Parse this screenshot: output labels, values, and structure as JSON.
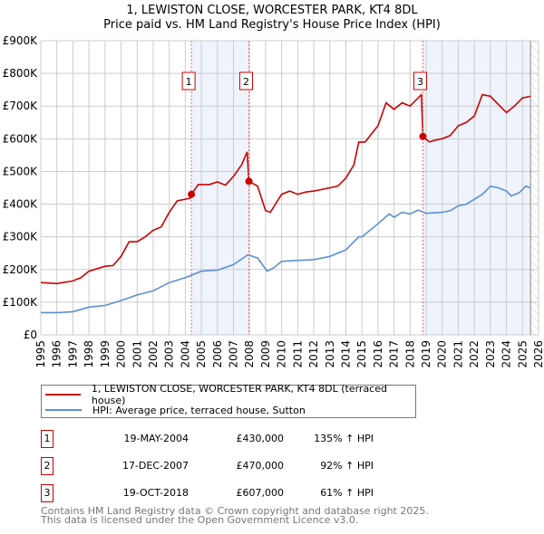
{
  "chart_data": {
    "type": "line",
    "title": "1, LEWISTON CLOSE, WORCESTER PARK, KT4 8DL",
    "subtitle": "Price paid vs. HM Land Registry's House Price Index (HPI)",
    "xlim": [
      1995,
      2026
    ],
    "ylim": [
      0,
      900000
    ],
    "grid": true,
    "x_ticks": [
      "1995",
      "1996",
      "1997",
      "1998",
      "1999",
      "2000",
      "2001",
      "2002",
      "2003",
      "2004",
      "2005",
      "2006",
      "2007",
      "2008",
      "2009",
      "2010",
      "2011",
      "2012",
      "2013",
      "2014",
      "2015",
      "2016",
      "2017",
      "2018",
      "2019",
      "2020",
      "2021",
      "2022",
      "2023",
      "2024",
      "2025",
      "2026"
    ],
    "y_ticks": [
      {
        "v": 0,
        "label": "£0"
      },
      {
        "v": 100000,
        "label": "£100K"
      },
      {
        "v": 200000,
        "label": "£200K"
      },
      {
        "v": 300000,
        "label": "£300K"
      },
      {
        "v": 400000,
        "label": "£400K"
      },
      {
        "v": 500000,
        "label": "£500K"
      },
      {
        "v": 600000,
        "label": "£600K"
      },
      {
        "v": 700000,
        "label": "£700K"
      },
      {
        "v": 800000,
        "label": "£800K"
      },
      {
        "v": 900000,
        "label": "£900K"
      }
    ],
    "forecast_start": 2025.5,
    "series": [
      {
        "name": "1, LEWISTON CLOSE, WORCESTER PARK, KT4 8DL (terraced house)",
        "color": "#cc0000",
        "x": [
          1995,
          1996,
          1997,
          1997.5,
          1998,
          1999,
          1999.5,
          2000,
          2000.5,
          2001,
          2001.5,
          2002,
          2002.5,
          2003,
          2003.5,
          2004,
          2004.3,
          2004.38,
          2004.8,
          2005.5,
          2006,
          2006.5,
          2007,
          2007.5,
          2007.85,
          2007.96,
          2008.5,
          2009,
          2009.3,
          2010,
          2010.5,
          2011,
          2011.5,
          2012,
          2013,
          2013.5,
          2014,
          2014.5,
          2014.8,
          2015.2,
          2016,
          2016.5,
          2017,
          2017.5,
          2018,
          2018.7,
          2018.8,
          2019.2,
          2019.5,
          2020,
          2020.5,
          2021,
          2021.5,
          2022,
          2022.5,
          2023,
          2023.5,
          2024,
          2024.5,
          2025,
          2025.5
        ],
        "values": [
          160000,
          157000,
          165000,
          175000,
          195000,
          210000,
          212000,
          240000,
          285000,
          285000,
          300000,
          320000,
          330000,
          375000,
          410000,
          415000,
          418000,
          430000,
          460000,
          460000,
          468000,
          458000,
          485000,
          520000,
          560000,
          470000,
          455000,
          380000,
          375000,
          430000,
          440000,
          430000,
          437000,
          440000,
          450000,
          455000,
          480000,
          520000,
          590000,
          590000,
          640000,
          710000,
          690000,
          710000,
          700000,
          735000,
          607000,
          590000,
          595000,
          600000,
          610000,
          640000,
          650000,
          670000,
          735000,
          730000,
          705000,
          680000,
          700000,
          725000,
          730000
        ]
      },
      {
        "name": "HPI: Average price, terraced house, Sutton",
        "color": "#5b8fd4",
        "x": [
          1995,
          1996,
          1997,
          1998,
          1999,
          2000,
          2001,
          2002,
          2003,
          2004,
          2004.5,
          2005,
          2006,
          2007,
          2007.9,
          2008.5,
          2009.1,
          2009.5,
          2010,
          2011,
          2012,
          2013,
          2014,
          2014.8,
          2015,
          2016,
          2016.7,
          2017,
          2017.5,
          2018,
          2018.5,
          2019,
          2020,
          2020.5,
          2021,
          2021.5,
          2022,
          2022.5,
          2023,
          2023.5,
          2024,
          2024.3,
          2024.8,
          2025.2,
          2025.5
        ],
        "values": [
          68000,
          68000,
          71000,
          85000,
          90000,
          105000,
          122000,
          135000,
          160000,
          175000,
          185000,
          195000,
          198000,
          215000,
          245000,
          235000,
          195000,
          205000,
          225000,
          228000,
          230000,
          240000,
          260000,
          300000,
          300000,
          340000,
          370000,
          360000,
          375000,
          370000,
          382000,
          372000,
          375000,
          380000,
          395000,
          400000,
          415000,
          430000,
          455000,
          450000,
          440000,
          425000,
          435000,
          455000,
          450000
        ]
      }
    ],
    "sales": [
      {
        "label": "1",
        "x": 2004.38,
        "value": 430000,
        "date": "19-MAY-2004",
        "price": "£430,000",
        "hpi": "135% ↑ HPI"
      },
      {
        "label": "2",
        "x": 2007.96,
        "value": 470000,
        "date": "17-DEC-2007",
        "price": "£470,000",
        "hpi": "92% ↑ HPI"
      },
      {
        "label": "3",
        "x": 2018.8,
        "value": 607000,
        "date": "19-OCT-2018",
        "price": "£607,000",
        "hpi": "61% ↑ HPI"
      }
    ]
  },
  "header": {
    "title": "1, LEWISTON CLOSE, WORCESTER PARK, KT4 8DL",
    "subtitle": "Price paid vs. HM Land Registry's House Price Index (HPI)"
  },
  "legend": {
    "property": "1, LEWISTON CLOSE, WORCESTER PARK, KT4 8DL (terraced house)",
    "hpi": "HPI: Average price, terraced house, Sutton"
  },
  "footer": {
    "line1": "Contains HM Land Registry data © Crown copyright and database right 2025.",
    "line2": "This data is licensed under the Open Government Licence v3.0."
  },
  "colors": {
    "property": "#cc0000",
    "hpi": "#5b8fd4",
    "shade": "#eef3fc"
  }
}
